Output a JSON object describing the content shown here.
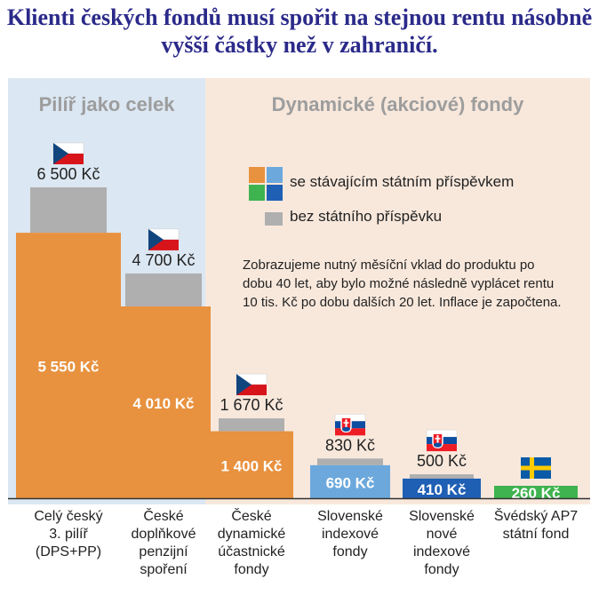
{
  "title": "Klienti českých fondů musí spořit na stejnou rentu násobně vyšší částky než v zahraničí.",
  "panels": {
    "left_header": "Pilíř jako celek",
    "right_header": "Dynamické (akciové) fondy"
  },
  "legend": {
    "with_state": "se stávajícím státním příspěvkem",
    "without_state": "bez státního příspěvku"
  },
  "note": "Zobrazujeme nutný měsíční vklad do produktu po dobu 40 let, aby bylo možné následně vyplácet rentu 10 tis. Kč po dobu dalších 20 let. Inflace je započtena.",
  "colors": {
    "title": "#2b2a8a",
    "gray": "#afafaf",
    "orange": "#e8913e",
    "light_blue": "#6ca8dc",
    "dark_blue": "#1f5fb4",
    "green": "#3fb34f",
    "left_panel": "#dbe7f2",
    "right_panel": "#f8e8dc",
    "windows_icon": [
      "#e8913e",
      "#6ca8dc",
      "#3fb34f",
      "#1f5fb4"
    ]
  },
  "chart_data": {
    "type": "bar",
    "categories": [
      "Celý český\n3. pilíř\n(DPS+PP)",
      "České\ndoplňkové\npenzijní\nspoření",
      "České\ndynamické\núčastnické\nfondy",
      "Slovenské\nindexové\nfondy",
      "Slovenské\nnové\nindexové\nfondy",
      "Švédský AP7\nstátní fond"
    ],
    "series": [
      {
        "name": "se stávajícím státním příspěvkem",
        "values": [
          5550,
          4010,
          1400,
          690,
          410,
          260
        ],
        "labels": [
          "5 550 Kč",
          "4 010 Kč",
          "1 400 Kč",
          "690 Kč",
          "410 Kč",
          "260 Kč"
        ],
        "colors": [
          "#e8913e",
          "#e8913e",
          "#e8913e",
          "#6ca8dc",
          "#1f5fb4",
          "#3fb34f"
        ]
      },
      {
        "name": "bez státního příspěvku",
        "values": [
          6500,
          4700,
          1670,
          830,
          500,
          null
        ],
        "labels": [
          "6 500 Kč",
          "4 700 Kč",
          "1 670 Kč",
          "830 Kč",
          "500 Kč",
          ""
        ]
      }
    ],
    "flags": [
      "cz",
      "cz",
      "cz",
      "sk",
      "sk",
      "se"
    ]
  }
}
